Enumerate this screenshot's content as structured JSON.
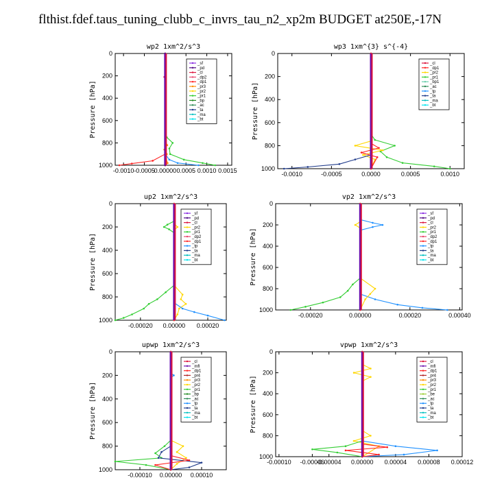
{
  "page_title": "flthist.fdef.taus_tuning_clubb_c_invrs_tau_n2_xp2m  BUDGET at250E,-17N",
  "colors": {
    "sf": "#8a2be2",
    "pd": "#4b0082",
    "cl": "#dc143c",
    "dp2": "#e8456b",
    "dp1": "#ff2020",
    "pr3": "#ff8c00",
    "pr2": "#ffd700",
    "pr1": "#32cd32",
    "bp": "#228b22",
    "ac": "#2e8b57",
    "ta": "#1e3a8a",
    "tp": "#1e90ff",
    "ma": "#00bfbf",
    "bt": "#00e5ee",
    "mfl": "#6a0dad",
    "dp2b": "#ff69b4",
    "pr4": "#b22222",
    "bp1": "#66cdaa",
    "be": "#9acd32"
  },
  "chart_data": [
    {
      "type": "line",
      "title": "wp2   1xm^2/s^3",
      "ylabel": "Pressure [hPa]",
      "xlim": [
        -0.0012,
        0.0016
      ],
      "ylim": [
        1000,
        0
      ],
      "xticks": [
        "-0.0010",
        "-0.0005",
        "0.00000",
        "0.0005",
        "0.0010",
        "0.0015"
      ],
      "xtick_values": [
        -0.001,
        -0.0005,
        0,
        0.0005,
        0.001,
        0.0015
      ],
      "yticks": [
        "0",
        "200",
        "400",
        "600",
        "800",
        "1000"
      ],
      "legend": [
        "_sf",
        "_pd",
        "_cl",
        "_dp2",
        "_dp1",
        "_pr3",
        "_pr2",
        "_pr1",
        "_bp",
        "_ac",
        "_ta",
        "_ma",
        "_bt"
      ],
      "legend_keys": [
        "sf",
        "pd",
        "cl",
        "dp2",
        "dp1",
        "pr3",
        "pr2",
        "pr1",
        "bp",
        "ac",
        "ta",
        "ma",
        "bt"
      ],
      "legend_placement": "top-right",
      "series": [
        {
          "key": "pr1",
          "p": [
            0,
            700,
            750,
            800,
            850,
            900,
            950,
            980,
            1000
          ],
          "v": [
            0,
            0,
            4e-05,
            0.00018,
            0.0001,
            0.00012,
            0.00045,
            0.0009,
            0.0012
          ]
        },
        {
          "key": "pr3",
          "p": [
            0,
            780,
            820,
            860,
            900,
            940,
            980,
            1000
          ],
          "v": [
            0,
            0,
            5e-05,
            -2e-05,
            4e-05,
            2e-05,
            6e-05,
            0
          ]
        },
        {
          "key": "tp",
          "p": [
            0,
            900,
            950,
            980,
            1000
          ],
          "v": [
            0,
            0,
            0.0001,
            0.0003,
            0.0008
          ]
        },
        {
          "key": "dp1",
          "p": [
            0,
            900,
            960,
            985,
            1000
          ],
          "v": [
            0,
            0,
            -0.0003,
            -0.0008,
            -0.0011
          ]
        },
        {
          "key": "cl",
          "p": [
            0,
            200,
            210,
            220,
            1000
          ],
          "v": [
            0,
            0,
            -2e-05,
            0,
            0
          ]
        },
        {
          "key": "pd",
          "p": [
            0,
            1000
          ],
          "v": [
            0,
            0
          ]
        }
      ]
    },
    {
      "type": "line",
      "title": "wp3   1xm^{3} s^{-4}",
      "ylabel": "Pressure [hPa]",
      "xlim": [
        -0.00118,
        0.00118
      ],
      "ylim": [
        1000,
        0
      ],
      "xticks": [
        "-0.0010",
        "-0.0005",
        "0.0000",
        "0.0005",
        "0.0010"
      ],
      "xtick_values": [
        -0.001,
        -0.0005,
        0,
        0.0005,
        0.001
      ],
      "yticks": [
        "0",
        "200",
        "400",
        "600",
        "800",
        "1000"
      ],
      "legend": [
        "_cl",
        "_dp1",
        "_pr2",
        "_pr1",
        "_bp1",
        "_ac",
        "_tp",
        "_ta",
        "_ma",
        "_bt"
      ],
      "legend_keys": [
        "cl",
        "dp1",
        "pr2",
        "pr1",
        "bp1",
        "ac",
        "tp",
        "ta",
        "ma",
        "bt"
      ],
      "legend_placement": "top-right",
      "series": [
        {
          "key": "pr1",
          "p": [
            0,
            700,
            750,
            800,
            850,
            900,
            950,
            980,
            1000
          ],
          "v": [
            0,
            0,
            5e-05,
            0.0003,
            0.00012,
            0.0002,
            0.0004,
            0.0008,
            0.001
          ]
        },
        {
          "key": "pr2",
          "p": [
            0,
            760,
            800,
            840,
            880,
            920,
            1000
          ],
          "v": [
            0,
            0,
            -0.0002,
            0.00015,
            -0.0001,
            5e-05,
            0
          ]
        },
        {
          "key": "ta",
          "p": [
            0,
            880,
            920,
            960,
            985,
            1000
          ],
          "v": [
            0,
            0,
            -0.0002,
            -0.0004,
            -0.0008,
            -0.0011
          ]
        },
        {
          "key": "dp1",
          "p": [
            0,
            780,
            820,
            860,
            900,
            1000
          ],
          "v": [
            0,
            0,
            0.0001,
            -0.00012,
            8e-05,
            0
          ]
        },
        {
          "key": "cl",
          "p": [
            0,
            1000
          ],
          "v": [
            0,
            0
          ]
        }
      ]
    },
    {
      "type": "line",
      "title": "up2   1xm^2/s^3",
      "ylabel": "Pressure [hPa]",
      "xlim": [
        -0.00035,
        0.00031
      ],
      "ylim": [
        1000,
        0
      ],
      "xticks": [
        "-0.00020",
        "0.00000",
        "0.00020"
      ],
      "xtick_values": [
        -0.0002,
        0,
        0.0002
      ],
      "yticks": [
        "0",
        "200",
        "400",
        "600",
        "800",
        "1000"
      ],
      "legend": [
        "_sf",
        "_pd",
        "_cl",
        "_pr2",
        "_pr1",
        "_dp2",
        "_dp1",
        "_tp",
        "_ta",
        "_ma",
        "_bt"
      ],
      "legend_keys": [
        "sf",
        "pd",
        "cl",
        "pr2",
        "pr1",
        "dp2",
        "dp1",
        "tp",
        "ta",
        "ma",
        "bt"
      ],
      "legend_placement": "top-right",
      "series": [
        {
          "key": "pr1",
          "p": [
            0,
            150,
            180,
            200,
            220,
            250,
            700,
            760,
            820,
            860,
            900,
            950,
            980,
            1000
          ],
          "v": [
            0,
            0,
            -4e-05,
            -6e-05,
            -3e-05,
            0,
            0,
            -5e-05,
            -0.0001,
            -0.00015,
            -0.00018,
            -0.00025,
            -0.0003,
            -0.00035
          ]
        },
        {
          "key": "pr2",
          "p": [
            0,
            170,
            200,
            230,
            700,
            780,
            820,
            860,
            900,
            950,
            1000
          ],
          "v": [
            0,
            0,
            2e-05,
            0,
            0,
            5e-05,
            4e-05,
            7e-05,
            3e-05,
            2e-05,
            0
          ]
        },
        {
          "key": "tp",
          "p": [
            0,
            850,
            900,
            930,
            960,
            1000
          ],
          "v": [
            0,
            0,
            5e-05,
            0.00012,
            0.0002,
            0.0003
          ]
        },
        {
          "key": "dp1",
          "p": [
            0,
            1000
          ],
          "v": [
            0,
            0
          ]
        }
      ]
    },
    {
      "type": "line",
      "title": "vp2   1xm^2/s^3",
      "ylabel": "Pressure [hPa]",
      "xlim": [
        -0.00034,
        0.00041
      ],
      "ylim": [
        1000,
        0
      ],
      "xticks": [
        "-0.00020",
        "0.00000",
        "0.00020",
        "0.00040"
      ],
      "xtick_values": [
        -0.0002,
        0,
        0.0002,
        0.0004
      ],
      "yticks": [
        "0",
        "200",
        "400",
        "600",
        "800",
        "1000"
      ],
      "legend": [
        "_sf",
        "_pd",
        "_cl",
        "_pr2",
        "_pr1",
        "_dp2",
        "_dp1",
        "_tp",
        "_ta",
        "_ma",
        "_bt"
      ],
      "legend_keys": [
        "sf",
        "pd",
        "cl",
        "pr2",
        "pr1",
        "dp2",
        "dp1",
        "tp",
        "ta",
        "ma",
        "bt"
      ],
      "legend_placement": "top-right",
      "series": [
        {
          "key": "tp",
          "p": [
            0,
            150,
            180,
            200,
            220,
            250,
            850,
            900,
            950,
            980,
            1000
          ],
          "v": [
            0,
            0,
            5e-05,
            9e-05,
            5e-05,
            0,
            0,
            6e-05,
            0.00015,
            0.00025,
            0.00035
          ]
        },
        {
          "key": "pr1",
          "p": [
            0,
            700,
            760,
            820,
            880,
            930,
            970,
            1000
          ],
          "v": [
            0,
            0,
            -3e-05,
            -5e-05,
            -8e-05,
            -0.00015,
            -0.00022,
            -0.00028
          ]
        },
        {
          "key": "pr2",
          "p": [
            0,
            170,
            200,
            230,
            700,
            800,
            850,
            900,
            1000
          ],
          "v": [
            0,
            0,
            -2e-05,
            0,
            0,
            6e-05,
            4e-05,
            2e-05,
            0
          ]
        },
        {
          "key": "cl",
          "p": [
            0,
            1000
          ],
          "v": [
            0,
            0
          ]
        }
      ]
    },
    {
      "type": "line",
      "title": "upwp   1xm^2/s^3",
      "ylabel": "Pressure [hPa]",
      "xlim": [
        -0.00018,
        0.00018
      ],
      "ylim": [
        1000,
        0
      ],
      "xticks": [
        "-0.00010",
        "0.00000",
        "0.00010"
      ],
      "xtick_values": [
        -0.0001,
        0,
        0.0001
      ],
      "yticks": [
        "0",
        "200",
        "400",
        "600",
        "800",
        "1000"
      ],
      "legend": [
        "_cl",
        "_mfl",
        "_dp1",
        "_pr4",
        "_pr3",
        "_pr2",
        "_pr1",
        "_bp",
        "_ac",
        "_tp",
        "_ta",
        "_ma",
        "_bt"
      ],
      "legend_keys": [
        "cl",
        "mfl",
        "dp1",
        "pr4",
        "pr3",
        "pr2",
        "pr1",
        "bp",
        "ac",
        "tp",
        "ta",
        "ma",
        "bt"
      ],
      "legend_placement": "top-right",
      "series": [
        {
          "key": "pr1",
          "p": [
            0,
            750,
            800,
            860,
            900,
            930,
            960,
            1000
          ],
          "v": [
            0,
            0,
            -2e-05,
            -5e-05,
            -3e-05,
            -0.00018,
            -8e-05,
            0
          ]
        },
        {
          "key": "pr2",
          "p": [
            0,
            750,
            800,
            850,
            900,
            950,
            1000
          ],
          "v": [
            0,
            0,
            4e-05,
            2e-05,
            5e-05,
            2e-05,
            0
          ]
        },
        {
          "key": "ta",
          "p": [
            0,
            800,
            850,
            900,
            940,
            980,
            1000
          ],
          "v": [
            0,
            0,
            -3e-05,
            -4e-05,
            0.0001,
            6e-05,
            0
          ]
        },
        {
          "key": "tp",
          "p": [
            0,
            180,
            200,
            220,
            1000
          ],
          "v": [
            0,
            0,
            1e-05,
            0,
            0
          ]
        },
        {
          "key": "dp1",
          "p": [
            0,
            880,
            920,
            960,
            1000
          ],
          "v": [
            0,
            0,
            6e-05,
            -5e-05,
            0
          ]
        },
        {
          "key": "cl",
          "p": [
            0,
            1000
          ],
          "v": [
            0,
            0
          ]
        }
      ]
    },
    {
      "type": "line",
      "title": "vpwp   1xm^2/s^3",
      "ylabel": "Pressure [hPa]",
      "xlim": [
        -0.000104,
        0.00012
      ],
      "ylim": [
        1000,
        0
      ],
      "xticks": [
        "-0.00010",
        "-0.00006",
        "-0.00004",
        "0.00000",
        "0.00004",
        "0.00008",
        "0.00012"
      ],
      "xtick_values": [
        -0.0001,
        -6e-05,
        -4e-05,
        0,
        4e-05,
        8e-05,
        0.00012
      ],
      "yticks": [
        "0",
        "200",
        "400",
        "600",
        "800",
        "1000"
      ],
      "legend": [
        "_cl",
        "_mfl",
        "_dp1",
        "_pr4",
        "_pr3",
        "_pr2",
        "_pr1",
        "_be",
        "_ac",
        "_tp",
        "_ta",
        "_ma",
        "_bt"
      ],
      "legend_keys": [
        "cl",
        "mfl",
        "dp1",
        "pr4",
        "pr3",
        "pr2",
        "pr1",
        "be",
        "ac",
        "tp",
        "ta",
        "ma",
        "bt"
      ],
      "legend_placement": "top-right",
      "series": [
        {
          "key": "pr2",
          "p": [
            0,
            120,
            160,
            200,
            240,
            280,
            750,
            800,
            850,
            900,
            1000
          ],
          "v": [
            0,
            0,
            1e-05,
            -1e-05,
            1e-05,
            0,
            0,
            1e-05,
            -1e-05,
            2e-05,
            0
          ]
        },
        {
          "key": "pr1",
          "p": [
            0,
            850,
            900,
            930,
            960,
            1000
          ],
          "v": [
            0,
            0,
            -2e-05,
            -6e-05,
            -3e-05,
            0
          ]
        },
        {
          "key": "tp",
          "p": [
            0,
            850,
            900,
            940,
            980,
            1000
          ],
          "v": [
            0,
            0,
            4e-05,
            9e-05,
            5e-05,
            0
          ]
        },
        {
          "key": "dp1",
          "p": [
            0,
            880,
            910,
            940,
            980,
            1000
          ],
          "v": [
            0,
            0,
            3e-05,
            -2e-05,
            2e-05,
            0
          ]
        },
        {
          "key": "cl",
          "p": [
            0,
            1000
          ],
          "v": [
            0,
            0
          ]
        }
      ]
    }
  ]
}
